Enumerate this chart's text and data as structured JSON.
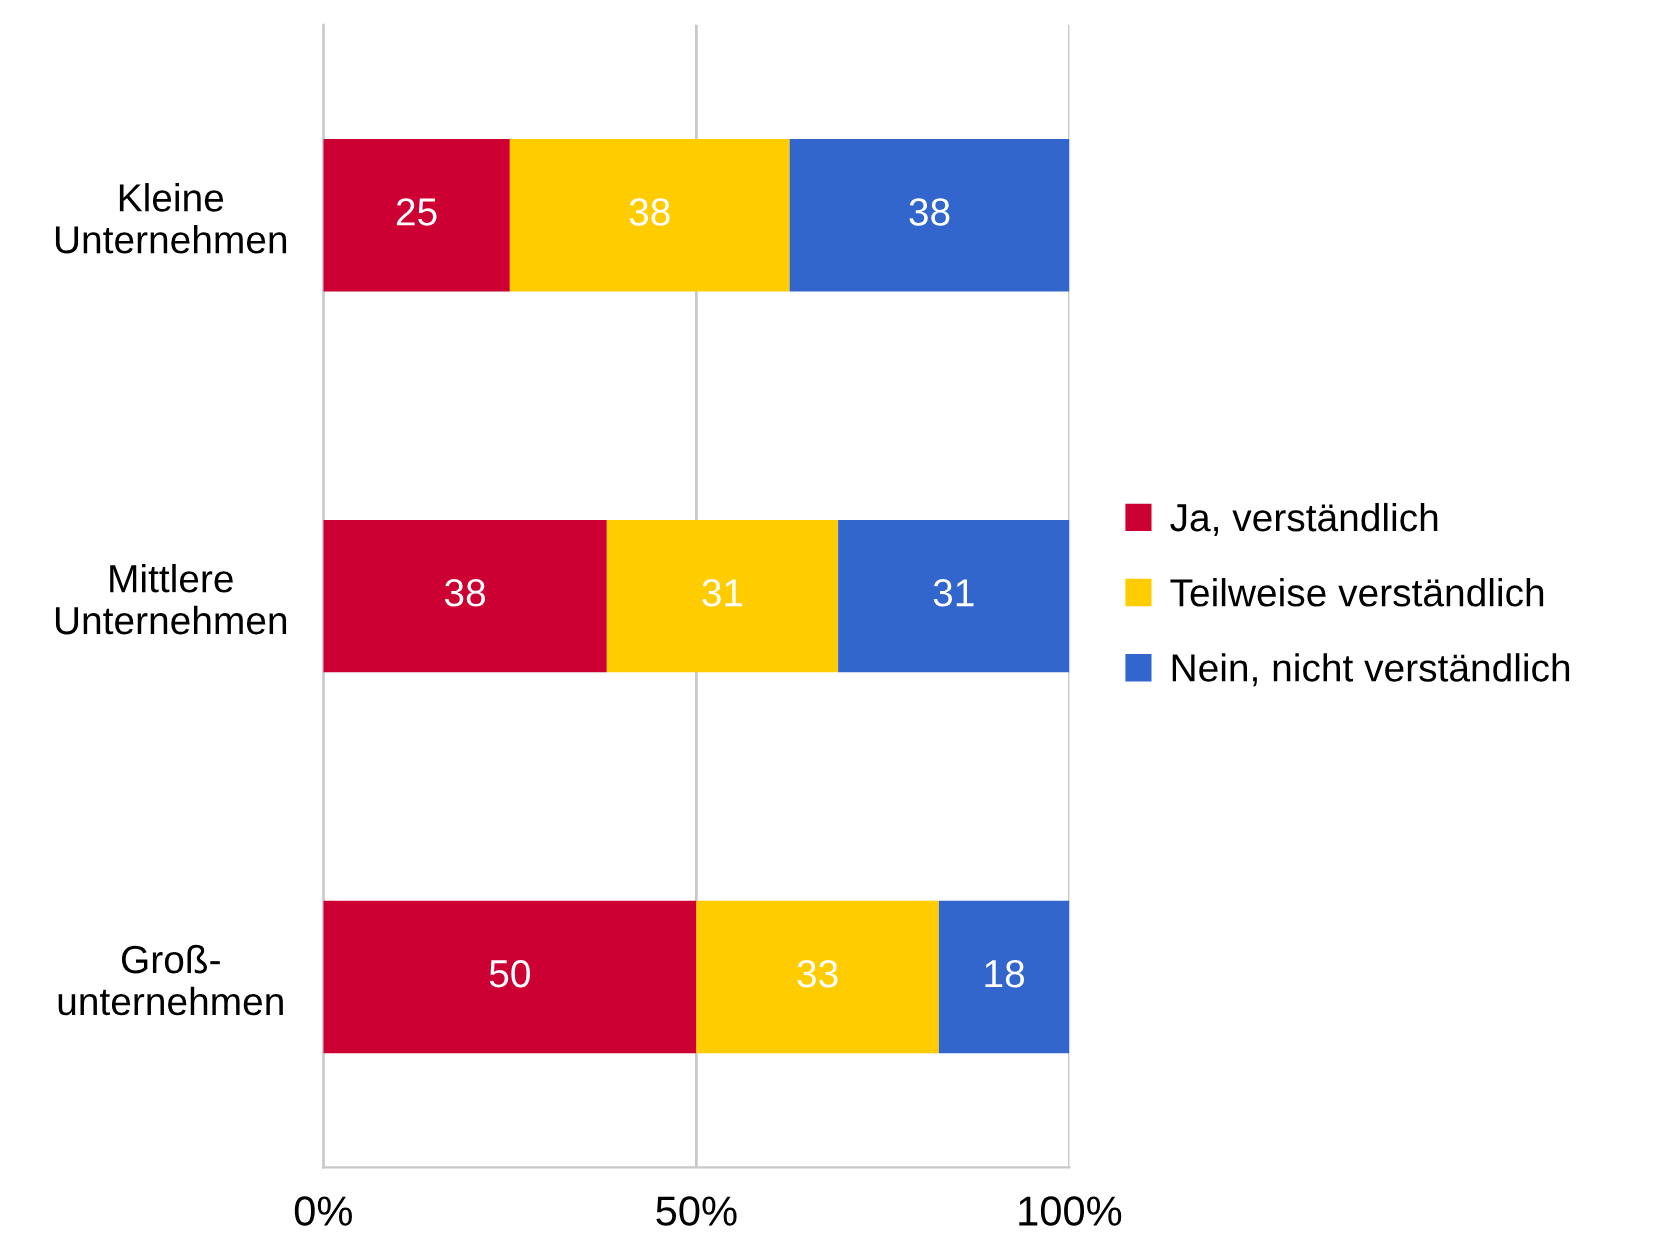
{
  "chart_data": {
    "type": "bar",
    "orientation": "horizontal",
    "stacked": true,
    "categories": [
      "Kleine\nUnternehmen",
      "Mittlere\nUnternehmen",
      "Groß-\nunternehmen"
    ],
    "series": [
      {
        "name": "Ja, verständlich",
        "color": "#cc0033",
        "values": [
          25,
          38,
          50
        ],
        "value_labels": [
          "25",
          "38",
          "50"
        ]
      },
      {
        "name": "Teilweise verständlich",
        "color": "#ffcc00",
        "values": [
          37.5,
          31,
          32.5
        ],
        "value_labels": [
          "38",
          "31",
          "33"
        ]
      },
      {
        "name": "Nein, nicht verständlich",
        "color": "#3366cc",
        "values": [
          37.5,
          31,
          17.5
        ],
        "value_labels": [
          "38",
          "31",
          "18"
        ]
      }
    ],
    "xlim": [
      0,
      100
    ],
    "xticks": [
      {
        "value": 0,
        "label": "0%"
      },
      {
        "value": 50,
        "label": "50%"
      },
      {
        "value": 100,
        "label": "100%"
      }
    ],
    "grid": "x",
    "legend": "right"
  }
}
